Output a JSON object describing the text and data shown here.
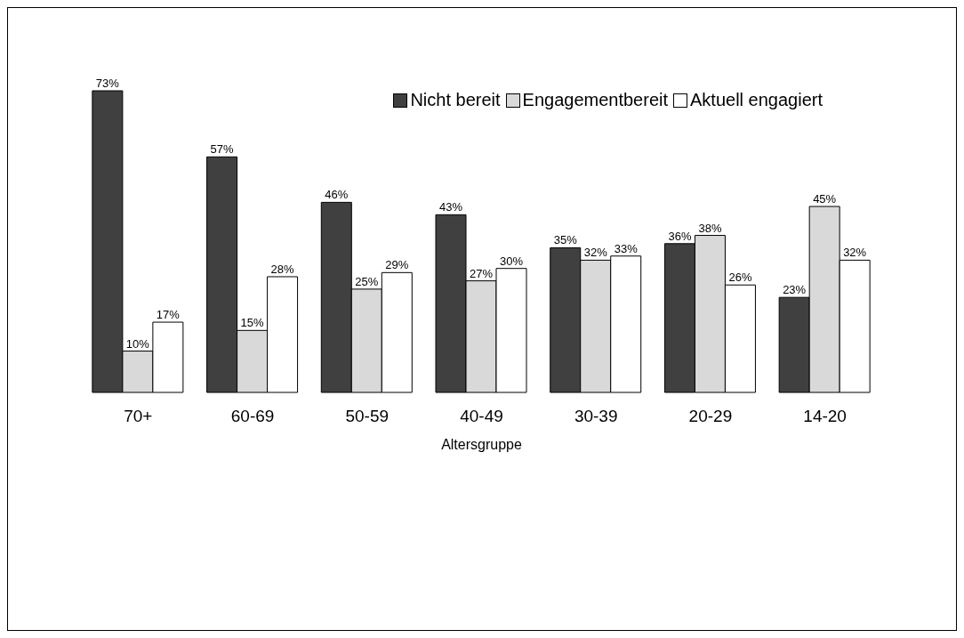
{
  "chart_data": {
    "type": "bar",
    "xlabel": "Altersgruppe",
    "categories": [
      "70+",
      "60-69",
      "50-59",
      "40-49",
      "30-39",
      "20-29",
      "14-20"
    ],
    "series": [
      {
        "name": "Nicht bereit",
        "color": "#404040",
        "values": [
          73,
          57,
          46,
          43,
          35,
          36,
          23
        ],
        "value_labels": [
          "73%",
          "57%",
          "46%",
          "43%",
          "35%",
          "36%",
          "23%"
        ]
      },
      {
        "name": "Engagementbereit",
        "color": "#d9d9d9",
        "values": [
          10,
          15,
          25,
          27,
          32,
          38,
          45
        ],
        "value_labels": [
          "10%",
          "15%",
          "25%",
          "27%",
          "32%",
          "38%",
          "45%"
        ]
      },
      {
        "name": "Aktuell engagiert",
        "color": "#ffffff",
        "values": [
          17,
          28,
          29,
          30,
          33,
          26,
          32
        ],
        "value_labels": [
          "17%",
          "28%",
          "29%",
          "30%",
          "33%",
          "26%",
          "32%"
        ]
      }
    ],
    "legend": "top right",
    "grid": false
  }
}
